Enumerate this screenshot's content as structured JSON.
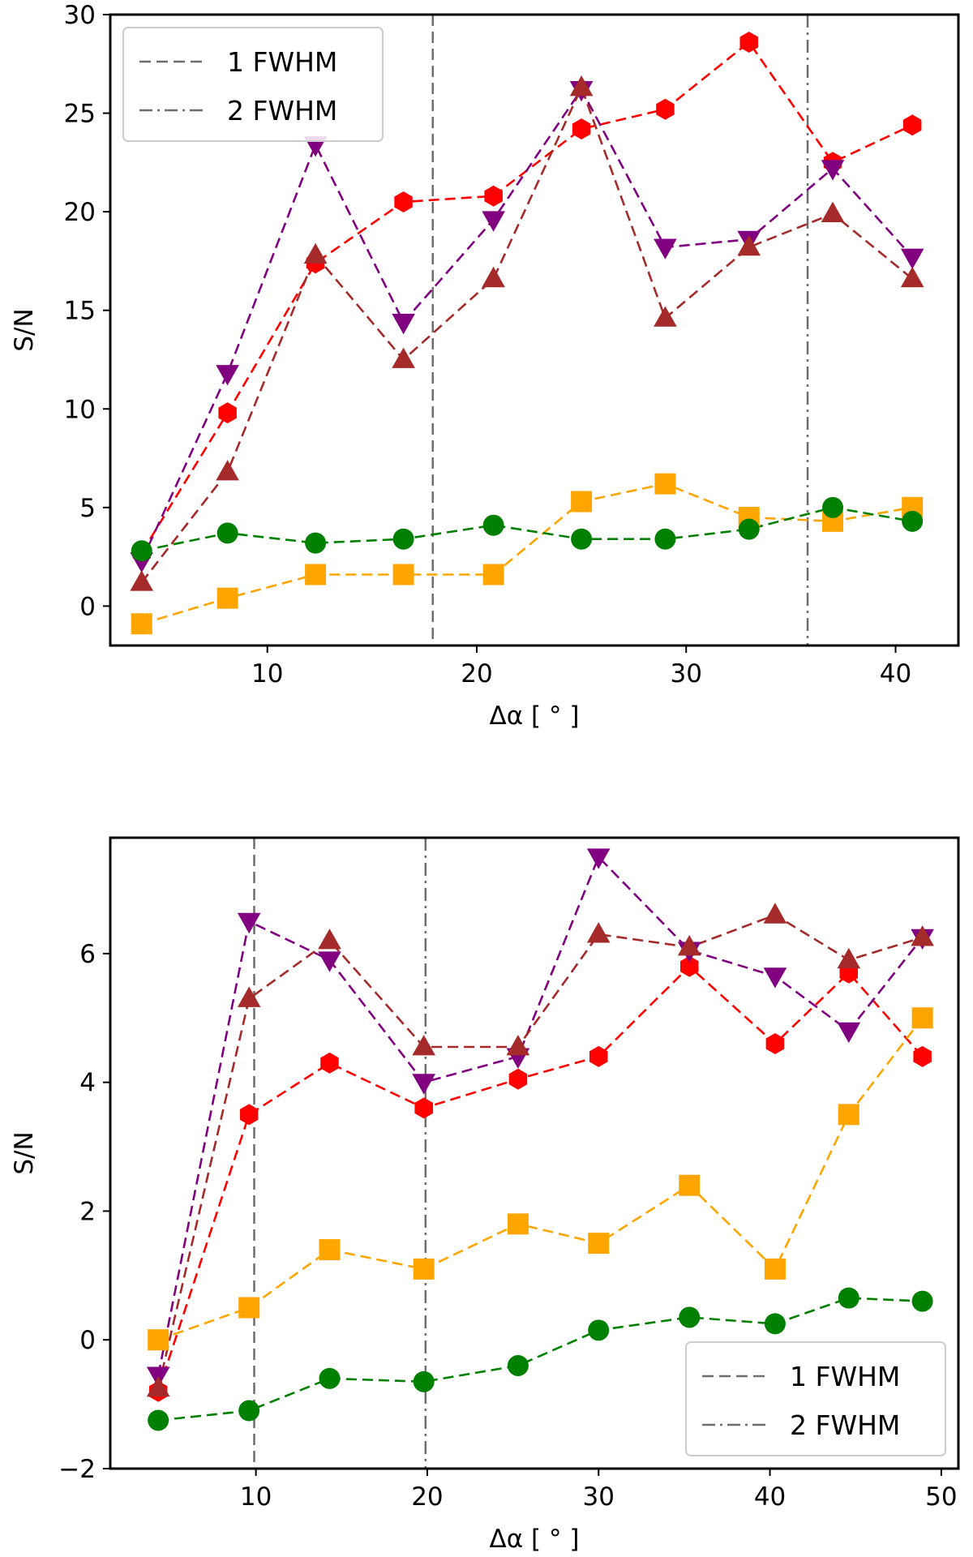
{
  "chart_data": [
    {
      "type": "line",
      "title": "",
      "xlabel": "Δα [ ° ]",
      "ylabel": "S/N",
      "xlim": [
        2.5,
        43
      ],
      "ylim": [
        -2,
        30
      ],
      "xticks": [
        10,
        20,
        30,
        40
      ],
      "yticks": [
        0,
        5,
        10,
        15,
        20,
        25,
        30
      ],
      "legend_position": "top-left",
      "legend": [
        {
          "label": "1 FWHM",
          "style": "dashed"
        },
        {
          "label": "2 FWHM",
          "style": "dashdot"
        }
      ],
      "vlines": [
        {
          "x": 17.9,
          "style": "dashed",
          "label": "1 FWHM"
        },
        {
          "x": 35.8,
          "style": "dashdot",
          "label": "2 FWHM"
        }
      ],
      "x": [
        4,
        8.1,
        12.3,
        16.5,
        20.8,
        25,
        29,
        33,
        37,
        40.8
      ],
      "series": [
        {
          "name": "red",
          "color": "#ff0000",
          "marker": "hexagon",
          "values": [
            2.7,
            9.8,
            17.4,
            20.5,
            20.8,
            24.2,
            25.2,
            28.6,
            22.5,
            24.4
          ]
        },
        {
          "name": "purple",
          "color": "#800080",
          "marker": "triangle-down",
          "values": [
            2.3,
            11.8,
            23.4,
            14.4,
            19.6,
            26.2,
            18.2,
            18.6,
            22.2,
            17.7
          ]
        },
        {
          "name": "brown",
          "color": "#a52a2a",
          "marker": "triangle-up",
          "values": [
            1.2,
            6.8,
            17.8,
            12.5,
            16.6,
            26.3,
            14.6,
            18.2,
            19.9,
            16.6
          ]
        },
        {
          "name": "orange",
          "color": "#ffa500",
          "marker": "square",
          "values": [
            -0.9,
            0.4,
            1.6,
            1.6,
            1.6,
            5.3,
            6.2,
            4.5,
            4.3,
            5.0
          ]
        },
        {
          "name": "green",
          "color": "#008000",
          "marker": "circle",
          "values": [
            2.8,
            3.7,
            3.2,
            3.4,
            4.1,
            3.4,
            3.4,
            3.9,
            5.0,
            4.3
          ]
        }
      ]
    },
    {
      "type": "line",
      "title": "",
      "xlabel": "Δα [ ° ]",
      "ylabel": "S/N",
      "xlim": [
        1.5,
        51
      ],
      "ylim": [
        -2,
        7.8
      ],
      "xticks": [
        10,
        20,
        30,
        40,
        50
      ],
      "yticks": [
        -2,
        0,
        2,
        4,
        6
      ],
      "legend_position": "bottom-right",
      "legend": [
        {
          "label": "1 FWHM",
          "style": "dashed"
        },
        {
          "label": "2 FWHM",
          "style": "dashdot"
        }
      ],
      "vlines": [
        {
          "x": 9.9,
          "style": "dashed",
          "label": "1 FWHM"
        },
        {
          "x": 19.9,
          "style": "dashdot",
          "label": "2 FWHM"
        }
      ],
      "x": [
        4.3,
        9.6,
        14.3,
        19.8,
        25.3,
        30,
        35.3,
        40.3,
        44.6,
        48.9
      ],
      "series": [
        {
          "name": "red",
          "color": "#ff0000",
          "marker": "hexagon",
          "values": [
            -0.8,
            3.5,
            4.3,
            3.6,
            4.05,
            4.4,
            5.8,
            4.6,
            5.7,
            4.4
          ]
        },
        {
          "name": "purple",
          "color": "#800080",
          "marker": "triangle-down",
          "values": [
            -0.55,
            6.5,
            5.9,
            4.0,
            4.4,
            7.5,
            6.05,
            5.65,
            4.8,
            6.25
          ]
        },
        {
          "name": "brown",
          "color": "#a52a2a",
          "marker": "triangle-up",
          "values": [
            -0.75,
            5.3,
            6.2,
            4.55,
            4.55,
            6.3,
            6.1,
            6.6,
            5.9,
            6.25
          ]
        },
        {
          "name": "orange",
          "color": "#ffa500",
          "marker": "square",
          "values": [
            0.0,
            0.5,
            1.4,
            1.1,
            1.8,
            1.5,
            2.4,
            1.1,
            3.5,
            5.0
          ]
        },
        {
          "name": "green",
          "color": "#008000",
          "marker": "circle",
          "values": [
            -1.25,
            -1.1,
            -0.6,
            -0.65,
            -0.4,
            0.15,
            0.35,
            0.25,
            0.65,
            0.6
          ]
        }
      ]
    }
  ]
}
